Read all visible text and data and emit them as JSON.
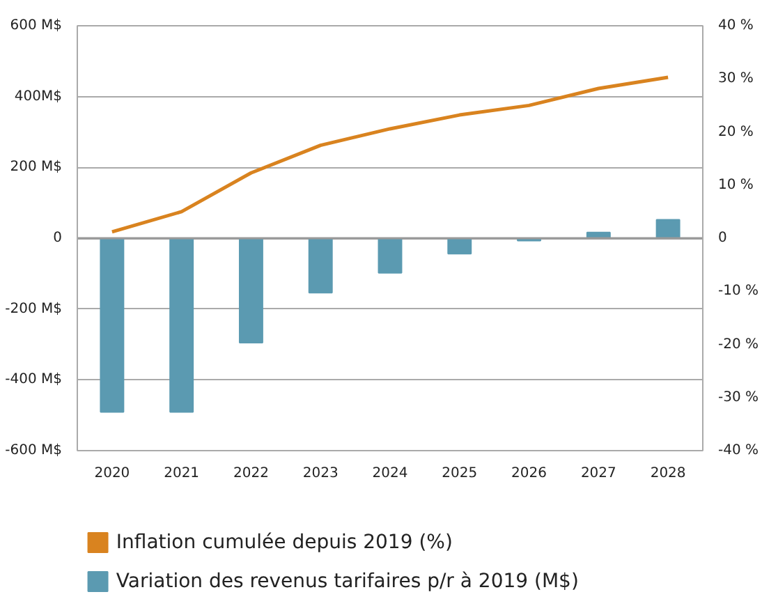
{
  "chart_data": {
    "type": "bar",
    "categories": [
      "2020",
      "2021",
      "2022",
      "2023",
      "2024",
      "2025",
      "2026",
      "2027",
      "2028"
    ],
    "series": [
      {
        "name": "Inflation cumulée depuis 2019 (%)",
        "type": "line",
        "axis": "y2",
        "color": "#d9831f",
        "values": [
          1.2,
          5.0,
          12.3,
          17.5,
          20.6,
          23.2,
          25.0,
          28.2,
          30.3
        ]
      },
      {
        "name": "Variation des revenus tarifaires p/r à 2019 (M$)",
        "type": "bar",
        "color": "#5b9ab1",
        "values": [
          -491,
          -491,
          -295,
          -154,
          -98,
          -44,
          -7,
          16,
          52
        ]
      }
    ],
    "ylim": [
      -600,
      600
    ],
    "yticks": [
      {
        "value": -600,
        "label": "-600 M$"
      },
      {
        "value": -400,
        "label": "-400 M$"
      },
      {
        "value": -200,
        "label": "-200 M$"
      },
      0,
      {
        "value": 200,
        "label": "200 M$"
      },
      {
        "value": 400,
        "label": "400M$"
      },
      {
        "value": 600,
        "label": "600 M$"
      }
    ],
    "y2lim": [
      -40,
      40
    ],
    "y2ticks": [
      {
        "value": -40,
        "label": "-40 %"
      },
      {
        "value": -30,
        "label": "-30 %"
      },
      {
        "value": -20,
        "label": "-20 %"
      },
      {
        "value": -10,
        "label": "-10 %"
      },
      0,
      {
        "value": 10,
        "label": "10 %"
      },
      {
        "value": 20,
        "label": "20 %"
      },
      {
        "value": 30,
        "label": "30 %"
      },
      {
        "value": 40,
        "label": "40 %"
      }
    ],
    "grid": "y",
    "legend": "bottom left"
  }
}
